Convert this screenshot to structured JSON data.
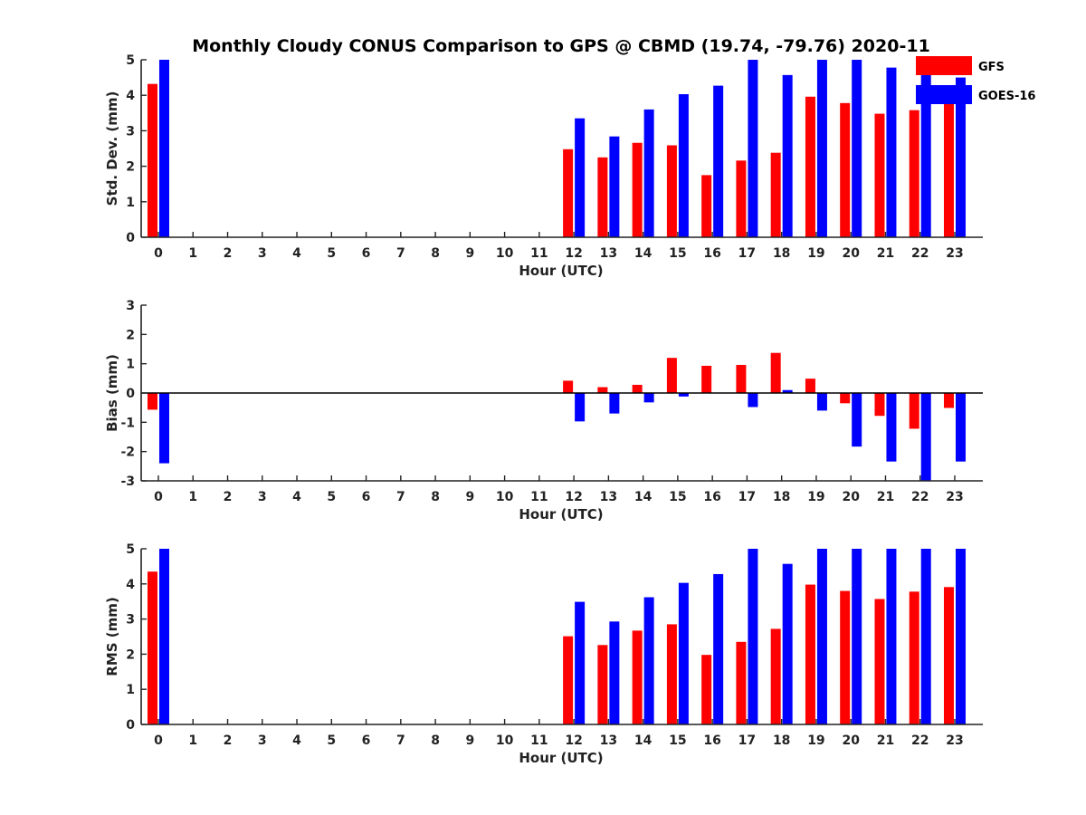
{
  "colors": {
    "gfs": "#ff0000",
    "goes": "#0000ff",
    "axis": "#222222"
  },
  "legend": {
    "items": [
      "GFS",
      "GOES-16"
    ],
    "placement": "top-right"
  },
  "chart_data": {
    "title": "Monthly Cloudy CONUS Comparison to GPS @ CBMD (19.74, -79.76) 2020-11",
    "hours": [
      0,
      1,
      2,
      3,
      4,
      5,
      6,
      7,
      8,
      9,
      10,
      11,
      12,
      13,
      14,
      15,
      16,
      17,
      18,
      19,
      20,
      21,
      22,
      23
    ],
    "panels": [
      {
        "type": "bar",
        "ylabel": "Std. Dev. (mm)",
        "xlabel": "Hour (UTC)",
        "ylim": [
          0,
          5
        ],
        "yticks": [
          0,
          1,
          2,
          3,
          4,
          5
        ],
        "series": [
          {
            "name": "GFS",
            "values": [
              4.32,
              null,
              null,
              null,
              null,
              null,
              null,
              null,
              null,
              null,
              null,
              null,
              2.48,
              2.25,
              2.66,
              2.59,
              1.75,
              2.16,
              2.38,
              3.96,
              3.78,
              3.48,
              3.58,
              3.84
            ]
          },
          {
            "name": "GOES-16",
            "values": [
              5.0,
              null,
              null,
              null,
              null,
              null,
              null,
              null,
              null,
              null,
              null,
              null,
              3.35,
              2.84,
              3.6,
              4.03,
              4.27,
              5.0,
              4.57,
              5.0,
              5.0,
              4.78,
              5.0,
              4.5
            ]
          }
        ]
      },
      {
        "type": "bar",
        "ylabel": "Bias (mm)",
        "xlabel": "Hour (UTC)",
        "ylim": [
          -3,
          3
        ],
        "yticks": [
          -3,
          -2,
          -1,
          0,
          1,
          2,
          3
        ],
        "series": [
          {
            "name": "GFS",
            "values": [
              -0.57,
              null,
              null,
              null,
              null,
              null,
              null,
              null,
              null,
              null,
              null,
              null,
              0.42,
              0.2,
              0.28,
              1.2,
              0.93,
              0.96,
              1.37,
              0.49,
              -0.35,
              -0.78,
              -1.22,
              -0.51
            ]
          },
          {
            "name": "GOES-16",
            "values": [
              -2.4,
              null,
              null,
              null,
              null,
              null,
              null,
              null,
              null,
              null,
              null,
              null,
              -0.97,
              -0.7,
              -0.32,
              -0.12,
              null,
              -0.48,
              0.1,
              -0.6,
              -1.83,
              -2.34,
              -3.0,
              -2.34
            ]
          }
        ]
      },
      {
        "type": "bar",
        "ylabel": "RMS (mm)",
        "xlabel": "Hour (UTC)",
        "ylim": [
          0,
          5
        ],
        "yticks": [
          0,
          1,
          2,
          3,
          4,
          5
        ],
        "series": [
          {
            "name": "GFS",
            "values": [
              4.35,
              null,
              null,
              null,
              null,
              null,
              null,
              null,
              null,
              null,
              null,
              null,
              2.51,
              2.26,
              2.67,
              2.85,
              1.98,
              2.35,
              2.72,
              3.98,
              3.8,
              3.57,
              3.78,
              3.91
            ]
          },
          {
            "name": "GOES-16",
            "values": [
              5.0,
              null,
              null,
              null,
              null,
              null,
              null,
              null,
              null,
              null,
              null,
              null,
              3.49,
              2.93,
              3.62,
              4.03,
              4.28,
              5.0,
              4.57,
              5.0,
              5.0,
              5.0,
              5.0,
              5.0
            ]
          }
        ]
      }
    ]
  }
}
